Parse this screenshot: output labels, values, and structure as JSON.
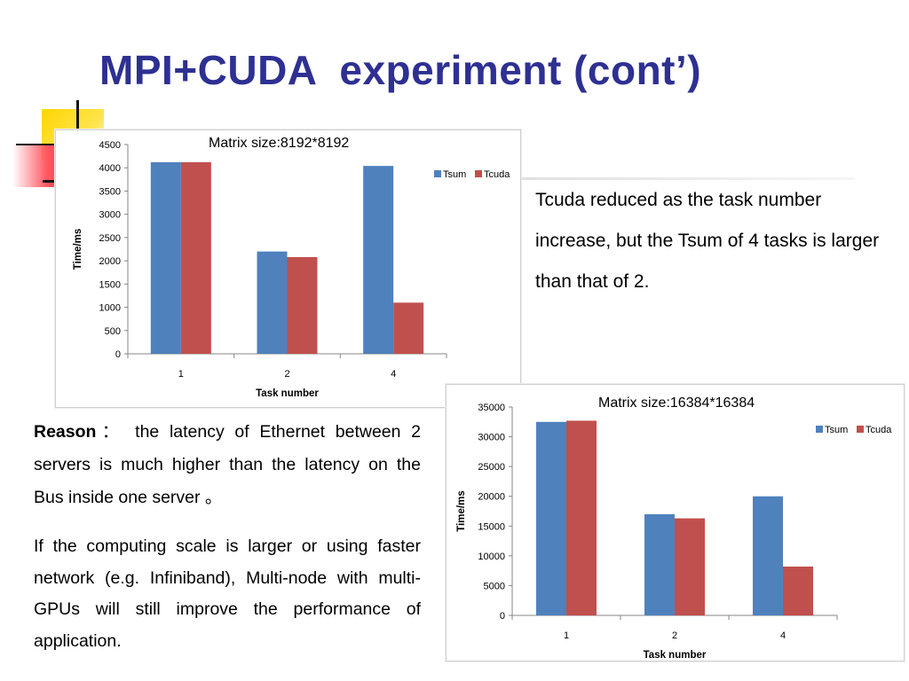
{
  "slide": {
    "title": "MPI+CUDA  experiment (cont’)",
    "note_right": "Tcuda reduced as the task number increase, but the Tsum of 4 tasks is larger than that of 2.",
    "reason_label": "Reason",
    "reason_sep": "：",
    "reason_text": "the latency of Ethernet between 2 servers is much higher than the latency on the Bus inside one server 。",
    "scale_text": "If the computing scale is larger or using faster network (e.g. Infiniband), Multi-node with multi-GPUs will still improve the performance of application."
  },
  "chart_data": [
    {
      "type": "bar",
      "caption": "Matrix size:8192*8192",
      "categories": [
        "1",
        "2",
        "4"
      ],
      "series": [
        {
          "name": "Tsum",
          "values": [
            4120,
            2200,
            4040
          ]
        },
        {
          "name": "Tcuda",
          "values": [
            4120,
            2080,
            1100
          ]
        }
      ],
      "xlabel": "Task number",
      "ylabel": "Time/ms",
      "ylim": [
        0,
        4500
      ],
      "yticks": [
        0,
        500,
        1000,
        1500,
        2000,
        2500,
        3000,
        3500,
        4000,
        4500
      ],
      "legend": "right",
      "grid": false,
      "colors": {
        "Tsum": "#4f81bd",
        "Tcuda": "#c0504d"
      }
    },
    {
      "type": "bar",
      "caption": "Matrix size:16384*16384",
      "categories": [
        "1",
        "2",
        "4"
      ],
      "series": [
        {
          "name": "Tsum",
          "values": [
            32500,
            17000,
            20000
          ]
        },
        {
          "name": "Tcuda",
          "values": [
            32700,
            16300,
            8200
          ]
        }
      ],
      "xlabel": "Task number",
      "ylabel": "Time/ms",
      "ylim": [
        0,
        35000
      ],
      "yticks": [
        0,
        5000,
        10000,
        15000,
        20000,
        25000,
        30000,
        35000
      ],
      "legend": "top-right",
      "grid": false,
      "colors": {
        "Tsum": "#4f81bd",
        "Tcuda": "#c0504d"
      }
    }
  ]
}
